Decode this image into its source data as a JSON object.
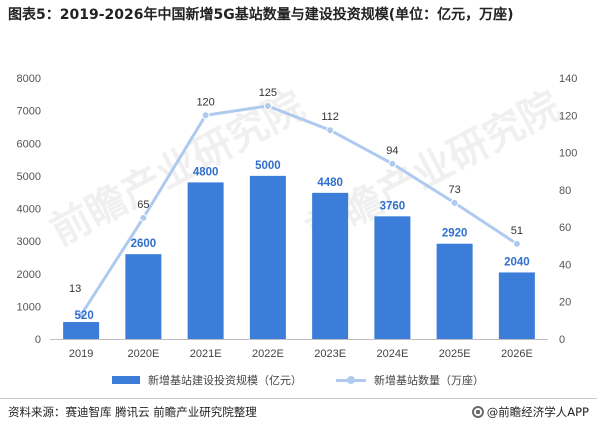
{
  "title": "图表5：2019-2026年中国新增5G基站数量与建设投资规模(单位：亿元，万座)",
  "chart_data": {
    "type": "bar",
    "categories": [
      "2019",
      "2020E",
      "2021E",
      "2022E",
      "2023E",
      "2024E",
      "2025E",
      "2026E"
    ],
    "series": [
      {
        "name": "新增基站建设投资规模（亿元）",
        "type": "bar",
        "axis": "left",
        "values": [
          520,
          2600,
          4800,
          5000,
          4480,
          3760,
          2920,
          2040
        ],
        "color": "#3b7dd8",
        "label_color": "#2f6fce"
      },
      {
        "name": "新增基站数量（万座）",
        "type": "line",
        "axis": "right",
        "values": [
          13,
          65,
          120,
          125,
          112,
          94,
          73,
          51
        ],
        "color": "#aecbef",
        "label_color": "#333333"
      }
    ],
    "y_left": {
      "range": [
        0,
        8000
      ],
      "ticks": [
        0,
        1000,
        2000,
        3000,
        4000,
        5000,
        6000,
        7000,
        8000
      ]
    },
    "y_right": {
      "range": [
        0,
        140
      ],
      "ticks": [
        0,
        20,
        40,
        60,
        80,
        100,
        120,
        140
      ]
    },
    "grid": false,
    "legend": "bottom"
  },
  "watermark": "前瞻产业研究院",
  "footer": {
    "source": "资料来源：赛迪智库 腾讯云 前瞻产业研究院整理",
    "brand": "@前瞻经济学人APP"
  }
}
